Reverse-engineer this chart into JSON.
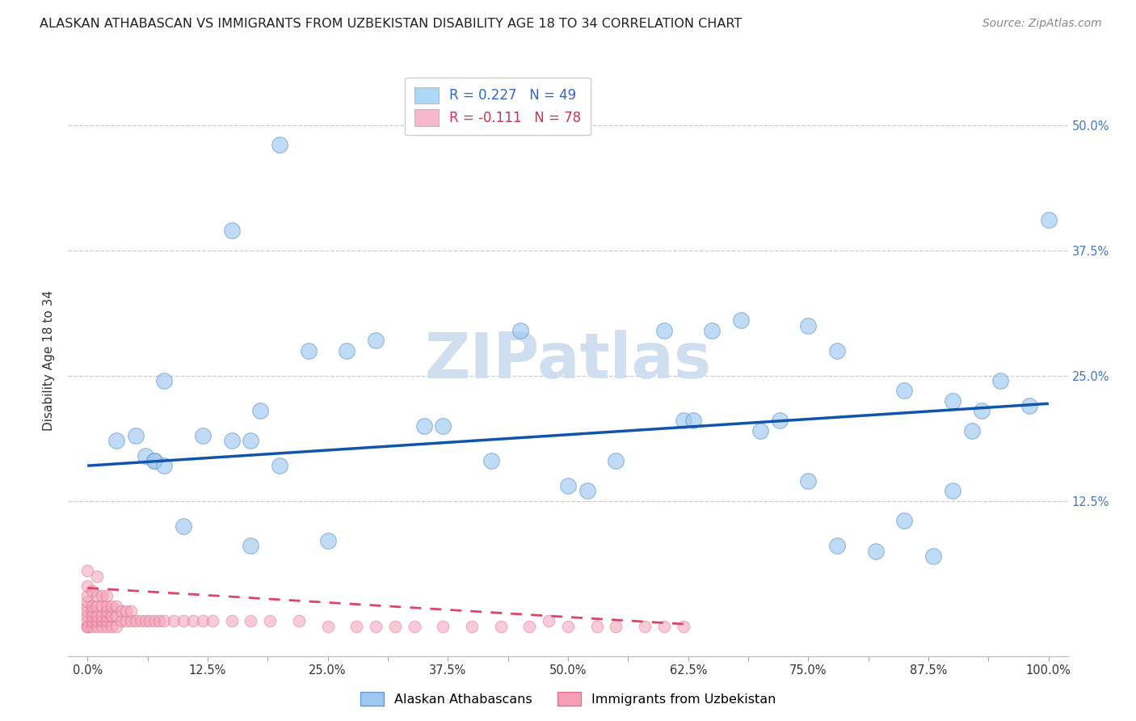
{
  "title": "ALASKAN ATHABASCAN VS IMMIGRANTS FROM UZBEKISTAN DISABILITY AGE 18 TO 34 CORRELATION CHART",
  "source": "Source: ZipAtlas.com",
  "ylabel": "Disability Age 18 to 34",
  "xlim": [
    -0.02,
    1.02
  ],
  "ylim": [
    -0.03,
    0.56
  ],
  "xtick_labels": [
    "0.0%",
    "",
    "12.5%",
    "",
    "25.0%",
    "",
    "37.5%",
    "",
    "50.0%",
    "",
    "62.5%",
    "",
    "75.0%",
    "",
    "87.5%",
    "",
    "100.0%"
  ],
  "xtick_vals": [
    0.0,
    0.0625,
    0.125,
    0.1875,
    0.25,
    0.3125,
    0.375,
    0.4375,
    0.5,
    0.5625,
    0.625,
    0.6875,
    0.75,
    0.8125,
    0.875,
    0.9375,
    1.0
  ],
  "ytick_labels_right": [
    "12.5%",
    "25.0%",
    "37.5%",
    "50.0%"
  ],
  "ytick_vals": [
    0.125,
    0.25,
    0.375,
    0.5
  ],
  "legend_blue_label": "R = 0.227   N = 49",
  "legend_pink_label": "R = -0.111   N = 78",
  "legend_blue_color": "#add8f7",
  "legend_pink_color": "#f7b8cc",
  "scatter_blue_color": "#9ec8f0",
  "scatter_blue_edge": "#6699cc",
  "scatter_pink_color": "#f5a0b8",
  "scatter_pink_edge": "#dd7090",
  "line_blue_color": "#1155aa",
  "line_pink_color": "#dd4466",
  "watermark_color": "#d0dff0",
  "blue_scatter_x": [
    0.2,
    0.15,
    0.23,
    0.27,
    0.08,
    0.05,
    0.06,
    0.07,
    0.07,
    0.08,
    0.1,
    0.12,
    0.15,
    0.17,
    0.17,
    0.35,
    0.37,
    0.42,
    0.5,
    0.62,
    0.65,
    0.68,
    0.7,
    0.72,
    0.75,
    0.78,
    0.85,
    0.88,
    0.9,
    0.92,
    0.95,
    0.98,
    1.0,
    0.3,
    0.25,
    0.52,
    0.6,
    0.75,
    0.78,
    0.85,
    0.9,
    0.03,
    0.63,
    0.18,
    0.45,
    0.55,
    0.82,
    0.93,
    0.2
  ],
  "blue_scatter_y": [
    0.48,
    0.395,
    0.275,
    0.275,
    0.245,
    0.19,
    0.17,
    0.165,
    0.165,
    0.16,
    0.1,
    0.19,
    0.185,
    0.185,
    0.08,
    0.2,
    0.2,
    0.165,
    0.14,
    0.205,
    0.295,
    0.305,
    0.195,
    0.205,
    0.145,
    0.08,
    0.105,
    0.07,
    0.135,
    0.195,
    0.245,
    0.22,
    0.405,
    0.285,
    0.085,
    0.135,
    0.295,
    0.3,
    0.275,
    0.235,
    0.225,
    0.185,
    0.205,
    0.215,
    0.295,
    0.165,
    0.075,
    0.215,
    0.16
  ],
  "pink_scatter_x": [
    0.0,
    0.0,
    0.0,
    0.0,
    0.0,
    0.0,
    0.0,
    0.0,
    0.0,
    0.0,
    0.0,
    0.005,
    0.005,
    0.005,
    0.005,
    0.005,
    0.005,
    0.01,
    0.01,
    0.01,
    0.01,
    0.01,
    0.01,
    0.015,
    0.015,
    0.015,
    0.015,
    0.015,
    0.02,
    0.02,
    0.02,
    0.02,
    0.02,
    0.02,
    0.025,
    0.025,
    0.025,
    0.03,
    0.03,
    0.03,
    0.035,
    0.035,
    0.04,
    0.04,
    0.045,
    0.045,
    0.05,
    0.055,
    0.06,
    0.065,
    0.07,
    0.075,
    0.08,
    0.09,
    0.1,
    0.11,
    0.12,
    0.13,
    0.15,
    0.17,
    0.19,
    0.22,
    0.25,
    0.28,
    0.3,
    0.32,
    0.34,
    0.37,
    0.4,
    0.43,
    0.46,
    0.5,
    0.53,
    0.58,
    0.62,
    0.48,
    0.55,
    0.6
  ],
  "pink_scatter_y": [
    0.0,
    0.0,
    0.0,
    0.005,
    0.01,
    0.015,
    0.02,
    0.025,
    0.03,
    0.04,
    0.055,
    0.0,
    0.005,
    0.01,
    0.015,
    0.02,
    0.035,
    0.0,
    0.005,
    0.01,
    0.02,
    0.03,
    0.05,
    0.0,
    0.005,
    0.01,
    0.02,
    0.03,
    0.0,
    0.005,
    0.01,
    0.015,
    0.02,
    0.03,
    0.0,
    0.01,
    0.02,
    0.0,
    0.01,
    0.02,
    0.005,
    0.015,
    0.005,
    0.015,
    0.005,
    0.015,
    0.005,
    0.005,
    0.005,
    0.005,
    0.005,
    0.005,
    0.005,
    0.005,
    0.005,
    0.005,
    0.005,
    0.005,
    0.005,
    0.005,
    0.005,
    0.005,
    0.0,
    0.0,
    0.0,
    0.0,
    0.0,
    0.0,
    0.0,
    0.0,
    0.0,
    0.0,
    0.0,
    0.0,
    0.0,
    0.005,
    0.0,
    0.0
  ],
  "blue_line_x": [
    0.0,
    1.0
  ],
  "blue_line_y": [
    0.16,
    0.222
  ],
  "pink_line_x": [
    0.0,
    0.62
  ],
  "pink_line_y": [
    0.038,
    0.002
  ]
}
